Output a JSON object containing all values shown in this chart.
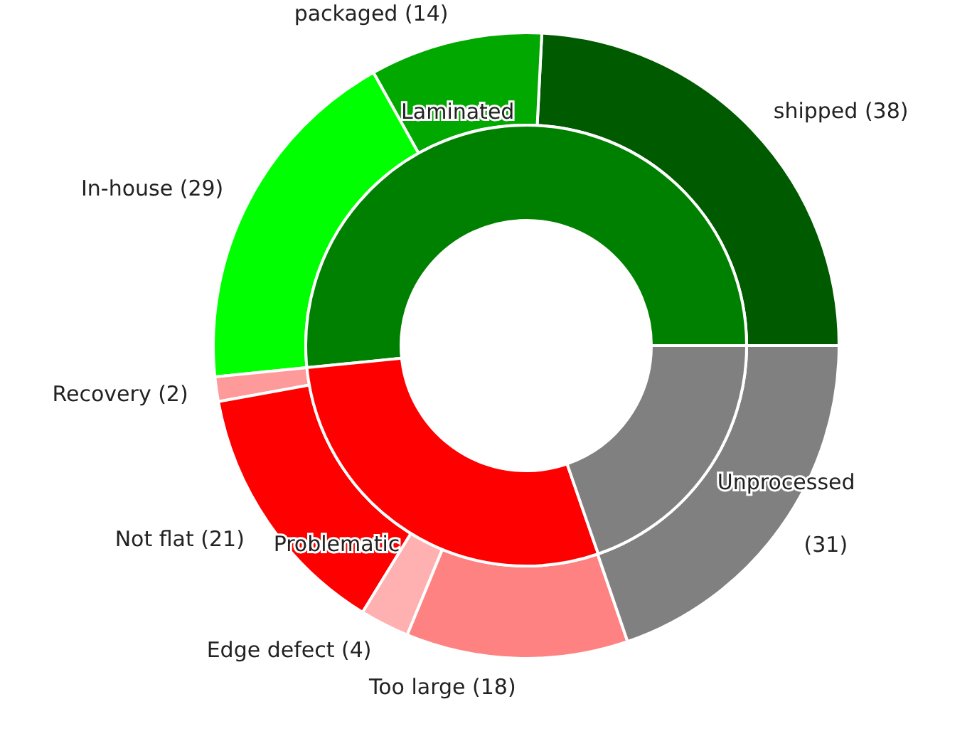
{
  "chart_data": [
    {
      "type": "donut",
      "categories": [
        "shipped (38)",
        "packaged (14)",
        "In-house (29)",
        "Recovery (2)",
        "Not flat (21)",
        "Edge defect (4)",
        "Too large (18)",
        "(31)"
      ],
      "values": [
        38,
        14,
        29,
        2,
        21,
        4,
        18,
        31
      ],
      "colors": [
        "#005a00",
        "#00a800",
        "#00ff00",
        "#ff9a9a",
        "#ff0000",
        "#ffb0b0",
        "#ff8282",
        "#808080"
      ]
    },
    {
      "type": "donut",
      "categories": [
        "Laminated",
        "Problematic",
        "Unprocessed"
      ],
      "values": [
        51.6,
        28.7,
        19.7
      ],
      "colors": [
        "#008000",
        "#ff0000",
        "#808080"
      ]
    }
  ]
}
